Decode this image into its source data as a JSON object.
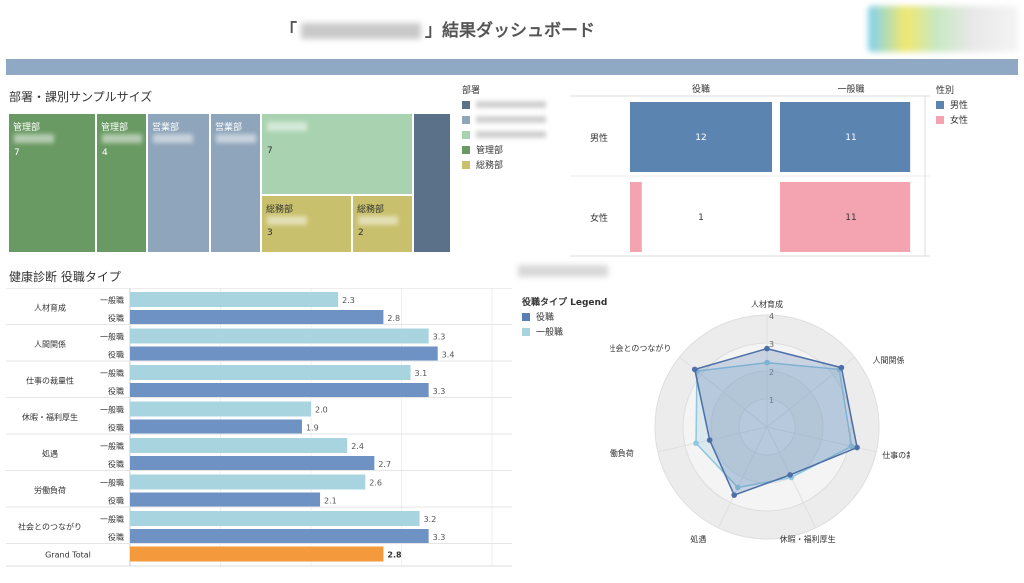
{
  "header": {
    "title_prefix": "「",
    "title_suffix": "」結果ダッシュボード"
  },
  "treemap_section": {
    "title": "部署・課別サンプルサイズ",
    "legend_title": "部署",
    "legend": [
      {
        "label": "",
        "color": "#5a7189"
      },
      {
        "label": "",
        "color": "#8fa5bb"
      },
      {
        "label": "",
        "color": "#a9d3b0"
      },
      {
        "label": "管理部",
        "color": "#6a9a64"
      },
      {
        "label": "総務部",
        "color": "#c8c06c"
      }
    ],
    "cells": [
      {
        "dept": "管理部",
        "value": "7",
        "color": "#6a9a64"
      },
      {
        "dept": "管理部",
        "value": "4",
        "color": "#6a9a64"
      },
      {
        "dept": "営業部",
        "value": "",
        "color": "#8fa5bb"
      },
      {
        "dept": "営業部",
        "value": "",
        "color": "#8fa5bb"
      },
      {
        "dept": "",
        "value": "7",
        "color": "#a9d3b0"
      },
      {
        "dept": "総務部",
        "value": "3",
        "color": "#c8c06c"
      },
      {
        "dept": "総務部",
        "value": "2",
        "color": "#c8c06c"
      },
      {
        "dept": "",
        "value": "",
        "color": "#5a7189"
      }
    ]
  },
  "gender_section": {
    "legend_title": "性別",
    "legend": [
      {
        "label": "男性",
        "color": "#5b84b1"
      },
      {
        "label": "女性",
        "color": "#f4a4b0"
      }
    ]
  },
  "bar_section": {
    "title": "健康診断 役職タイプ",
    "legend_title": "役職タイプ Legend",
    "legend": [
      {
        "label": "役職",
        "color": "#5b7fb4"
      },
      {
        "label": "一般職",
        "color": "#a8d4e0"
      }
    ],
    "grand_total_label": "Grand Total"
  },
  "chart_data": [
    {
      "type": "heatmap",
      "columns": [
        "役職",
        "一般職"
      ],
      "rows": [
        "男性",
        "女性"
      ],
      "values": [
        [
          12,
          11
        ],
        [
          1,
          11
        ]
      ],
      "value_max": 12
    },
    {
      "type": "bar",
      "categories": [
        "人材育成",
        "人間関係",
        "仕事の裁量性",
        "休暇・福利厚生",
        "処遇",
        "労働負荷",
        "社会とのつながり"
      ],
      "series": [
        {
          "name": "一般職",
          "values": [
            2.3,
            3.3,
            3.1,
            2.0,
            2.4,
            2.6,
            3.2
          ],
          "color": "#a8d4e0"
        },
        {
          "name": "役職",
          "values": [
            2.8,
            3.4,
            3.3,
            1.9,
            2.7,
            2.1,
            3.3
          ],
          "color": "#6f92c4"
        }
      ],
      "grand_total": {
        "value": 2.8,
        "color": "#f49a3c"
      },
      "xlim": [
        0,
        4
      ]
    },
    {
      "type": "radar",
      "axes": [
        "人材育成",
        "人間関係",
        "仕事の裁量性",
        "休暇・福利厚生",
        "処遇",
        "労働負荷",
        "社会とのつながり"
      ],
      "ticks": [
        "1",
        "2",
        "3",
        "4"
      ],
      "series": [
        {
          "name": "役職",
          "values": [
            2.8,
            3.4,
            3.3,
            1.9,
            2.7,
            2.1,
            3.3
          ],
          "color": "#4b6fa6"
        },
        {
          "name": "一般職",
          "values": [
            2.3,
            3.3,
            3.1,
            2.0,
            2.4,
            2.6,
            3.2
          ],
          "color": "#8fc7e0"
        }
      ],
      "rmax": 4
    }
  ]
}
